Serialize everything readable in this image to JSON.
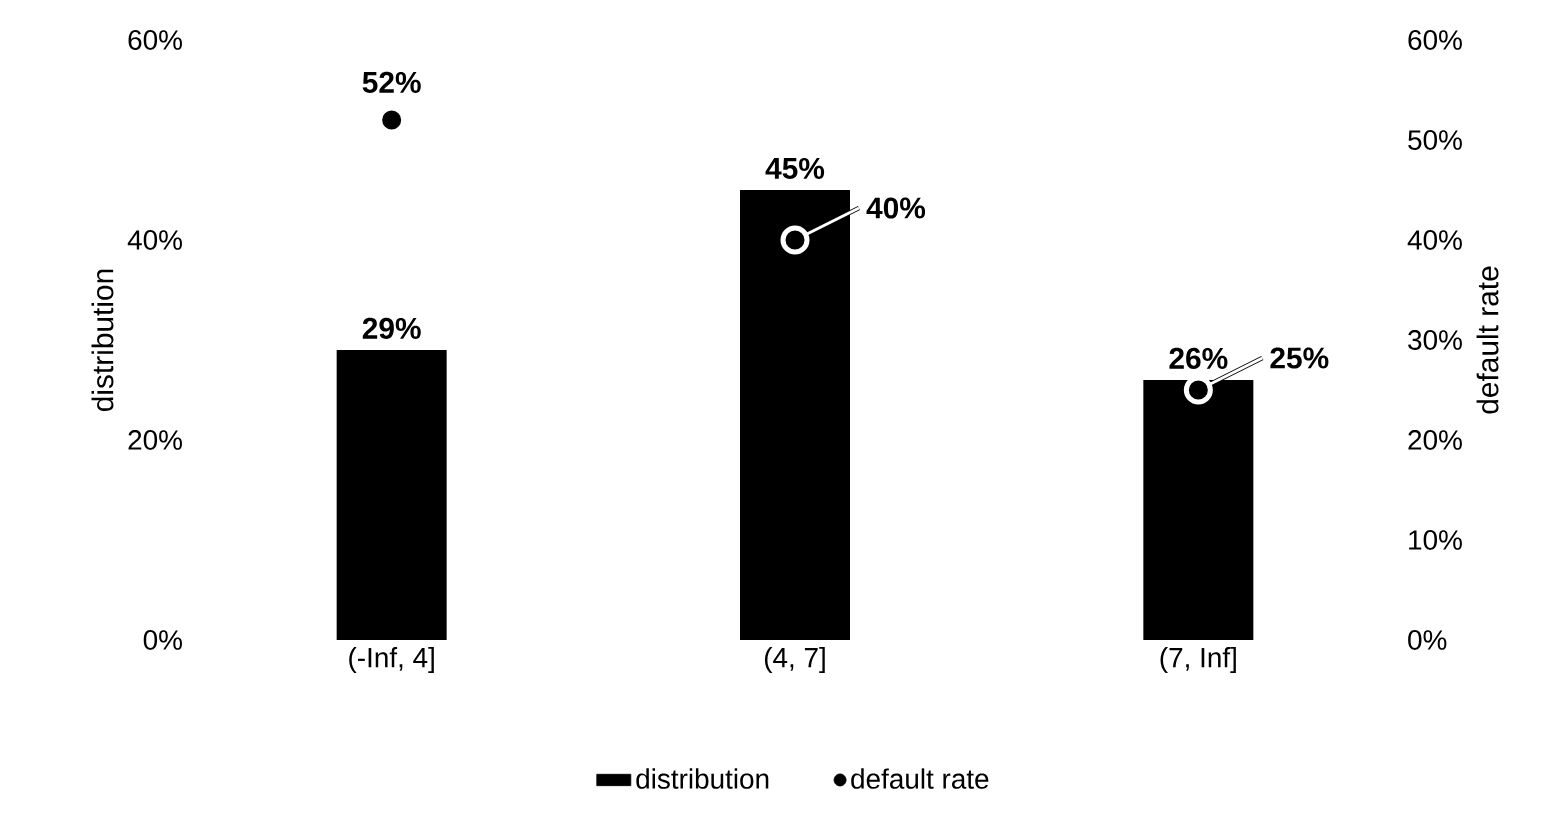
{
  "chart_data": {
    "type": "bar",
    "categories": [
      "(-Inf, 4]",
      "(4, 7]",
      "(7, Inf]"
    ],
    "ylabel": "distribution",
    "y2label": "default rate",
    "ylim": [
      0,
      60
    ],
    "yticks": [
      {
        "value": 0,
        "label": "0%"
      },
      {
        "value": 20,
        "label": "20%"
      },
      {
        "value": 40,
        "label": "40%"
      },
      {
        "value": 60,
        "label": "60%"
      }
    ],
    "y2lim": [
      0,
      60
    ],
    "y2ticks": [
      {
        "value": 0,
        "label": "0%"
      },
      {
        "value": 10,
        "label": "10%"
      },
      {
        "value": 20,
        "label": "20%"
      },
      {
        "value": 30,
        "label": "30%"
      },
      {
        "value": 40,
        "label": "40%"
      },
      {
        "value": 50,
        "label": "50%"
      },
      {
        "value": 60,
        "label": "60%"
      }
    ],
    "series": [
      {
        "name": "distribution",
        "color": "#000000",
        "values": [
          29,
          45,
          26
        ],
        "value_labels": [
          "29%",
          "45%",
          "26%"
        ]
      },
      {
        "name": "default rate",
        "type": "scatter",
        "marker": "circle",
        "axis": "y2",
        "color": "#000000",
        "values": [
          52,
          40,
          25
        ],
        "value_labels": [
          "52%",
          "40%",
          "25%"
        ]
      }
    ],
    "legend": "bottom",
    "grid": false
  }
}
